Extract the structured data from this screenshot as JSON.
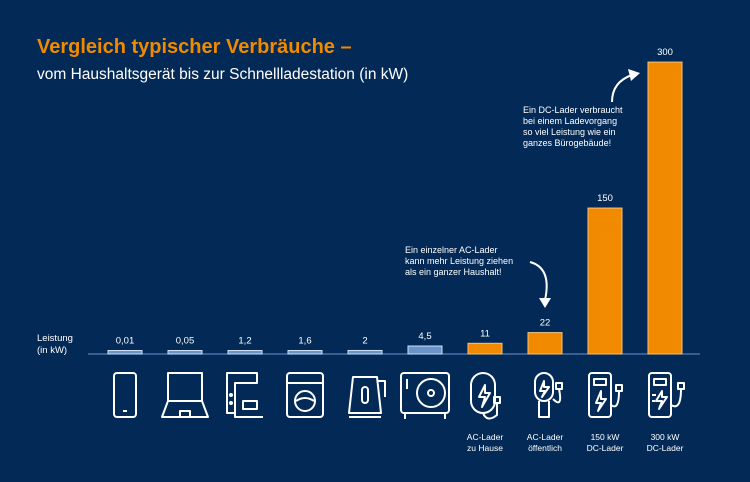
{
  "chart_data": {
    "type": "bar",
    "title": "Vergleich typischer Verbräuche –",
    "subtitle": "vom Haushaltsgerät bis zur Schnellladestation (in kW)",
    "ylabel": "Leistung (in kW)",
    "ylabel_lines": [
      "Leistung",
      "(in kW)"
    ],
    "categories": [
      "Smartphone",
      "Laptop",
      "Kaffeemaschine",
      "Waschmaschine",
      "Wasserkocher",
      "Wärmepumpe",
      "AC-Lader zu Hause",
      "AC-Lader öffentlich",
      "150 kW DC-Lader",
      "300 kW DC-Lader"
    ],
    "category_labels": [
      null,
      null,
      null,
      null,
      null,
      null,
      [
        "AC-Lader",
        "zu Hause"
      ],
      [
        "AC-Lader",
        "öffentlich"
      ],
      [
        "150 kW",
        "DC-Lader"
      ],
      [
        "300 kW",
        "DC-Lader"
      ]
    ],
    "icons": [
      "smartphone-icon",
      "laptop-icon",
      "coffee-machine-icon",
      "washing-machine-icon",
      "kettle-icon",
      "heat-pump-icon",
      "wallbox-icon",
      "public-charger-icon",
      "dc-charger-icon",
      "fast-dc-charger-icon"
    ],
    "values": [
      0.01,
      0.05,
      1.2,
      1.6,
      2,
      4.5,
      11,
      22,
      150,
      300
    ],
    "value_labels": [
      "0,01",
      "0,05",
      "1,2",
      "1,6",
      "2",
      "4,5",
      "11",
      "22",
      "150",
      "300"
    ],
    "colors": {
      "household": "#6a93c9",
      "charger": "#f28a00",
      "background": "#032a56",
      "title": "#f28a00"
    },
    "grid": false,
    "annotations": [
      {
        "text": "Ein einzelner AC-Lader kann mehr Leistung ziehen als ein ganzer Haushalt!",
        "lines": [
          "Ein einzelner AC-Lader",
          "kann mehr Leistung ziehen",
          "als ein ganzer Haushalt!"
        ],
        "target": "AC-Lader öffentlich"
      },
      {
        "text": "Ein DC-Lader verbraucht bei einem Ladevorgang so viel Leistung wie ein ganzes Bürogebäude!",
        "lines": [
          "Ein DC-Lader verbraucht",
          "bei einem Ladevorgang",
          "so viel Leistung wie ein",
          "ganzes Bürogebäude!"
        ],
        "target": "300 kW DC-Lader"
      }
    ]
  }
}
